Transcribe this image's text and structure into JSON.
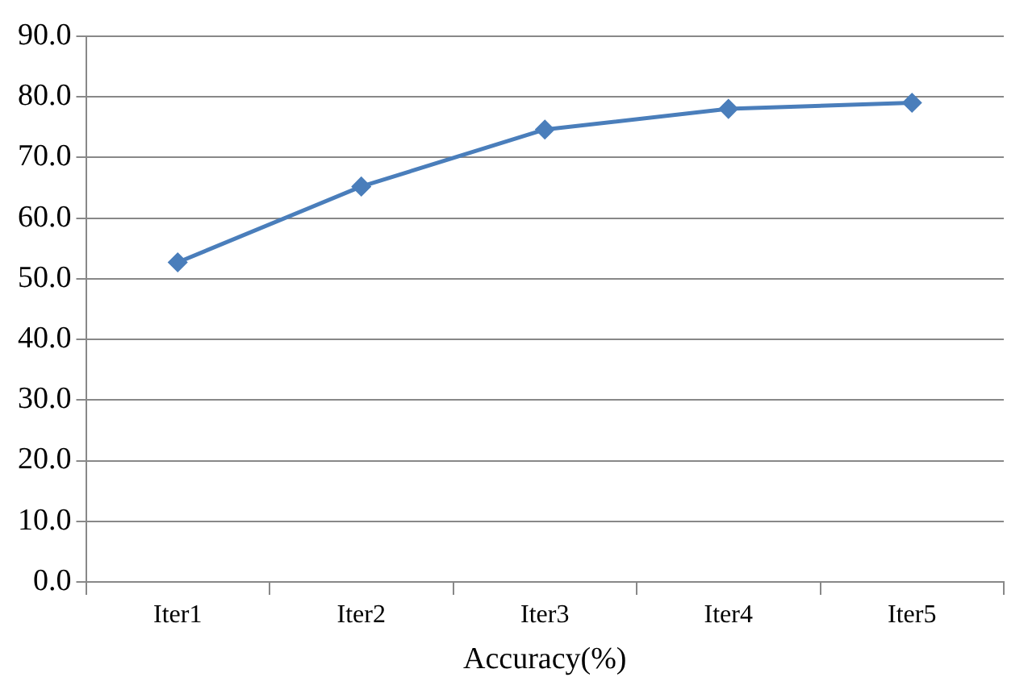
{
  "chart_data": {
    "type": "line",
    "xlabel": "Accuracy(%)",
    "categories": [
      "Iter1",
      "Iter2",
      "Iter3",
      "Iter4",
      "Iter5"
    ],
    "series": [
      {
        "color": "#4a7ebb",
        "values": [
          52.7,
          65.2,
          74.6,
          78.0,
          79.0
        ]
      }
    ],
    "ylim": [
      0,
      90
    ],
    "yticks": [
      {
        "value": 0,
        "label": "0.0"
      },
      {
        "value": 10,
        "label": "10.0"
      },
      {
        "value": 20,
        "label": "20.0"
      },
      {
        "value": 30,
        "label": "30.0"
      },
      {
        "value": 40,
        "label": "40.0"
      },
      {
        "value": 50,
        "label": "50.0"
      },
      {
        "value": 60,
        "label": "60.0"
      },
      {
        "value": 70,
        "label": "70.0"
      },
      {
        "value": 80,
        "label": "80.0"
      },
      {
        "value": 90,
        "label": "90.0"
      }
    ],
    "grid": "y",
    "marker": "diamond",
    "line_style": "solid"
  }
}
